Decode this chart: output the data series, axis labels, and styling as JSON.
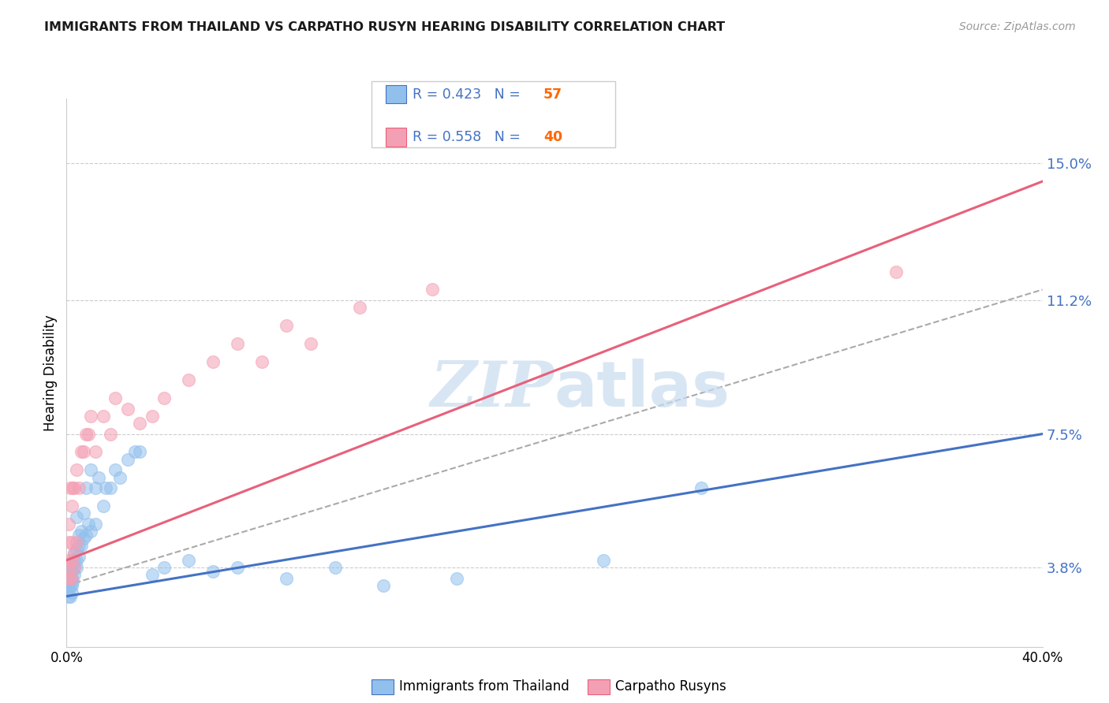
{
  "title": "IMMIGRANTS FROM THAILAND VS CARPATHO RUSYN HEARING DISABILITY CORRELATION CHART",
  "source": "Source: ZipAtlas.com",
  "ylabel": "Hearing Disability",
  "yticks": [
    "3.8%",
    "7.5%",
    "11.2%",
    "15.0%"
  ],
  "ytick_vals": [
    0.038,
    0.075,
    0.112,
    0.15
  ],
  "xlim": [
    0.0,
    0.4
  ],
  "ylim": [
    0.016,
    0.168
  ],
  "legend_color1": "#92C0ED",
  "legend_color2": "#F4A0B4",
  "line_color1": "#4472C4",
  "line_color2": "#E8607A",
  "dashed_color": "#AAAAAA",
  "legend_text_color": "#4472C4",
  "bottom_label1": "Immigrants from Thailand",
  "bottom_label2": "Carpatho Rusyns",
  "thailand_x": [
    0.0005,
    0.001,
    0.001,
    0.001,
    0.001,
    0.001,
    0.001,
    0.0015,
    0.0015,
    0.002,
    0.002,
    0.002,
    0.002,
    0.002,
    0.0025,
    0.003,
    0.003,
    0.003,
    0.003,
    0.004,
    0.004,
    0.004,
    0.004,
    0.005,
    0.005,
    0.005,
    0.006,
    0.006,
    0.007,
    0.007,
    0.008,
    0.008,
    0.009,
    0.01,
    0.01,
    0.012,
    0.012,
    0.013,
    0.015,
    0.016,
    0.018,
    0.02,
    0.022,
    0.025,
    0.028,
    0.03,
    0.035,
    0.04,
    0.05,
    0.06,
    0.07,
    0.09,
    0.11,
    0.13,
    0.16,
    0.22,
    0.26
  ],
  "thailand_y": [
    0.033,
    0.03,
    0.032,
    0.034,
    0.035,
    0.036,
    0.038,
    0.03,
    0.033,
    0.031,
    0.033,
    0.035,
    0.037,
    0.039,
    0.034,
    0.036,
    0.038,
    0.04,
    0.042,
    0.038,
    0.04,
    0.043,
    0.052,
    0.041,
    0.044,
    0.047,
    0.044,
    0.048,
    0.046,
    0.053,
    0.047,
    0.06,
    0.05,
    0.048,
    0.065,
    0.05,
    0.06,
    0.063,
    0.055,
    0.06,
    0.06,
    0.065,
    0.063,
    0.068,
    0.07,
    0.07,
    0.036,
    0.038,
    0.04,
    0.037,
    0.038,
    0.035,
    0.038,
    0.033,
    0.035,
    0.04,
    0.06
  ],
  "rusyn_x": [
    0.0005,
    0.001,
    0.001,
    0.001,
    0.001,
    0.001,
    0.0015,
    0.002,
    0.002,
    0.002,
    0.002,
    0.0025,
    0.003,
    0.003,
    0.003,
    0.004,
    0.004,
    0.005,
    0.006,
    0.007,
    0.008,
    0.009,
    0.01,
    0.012,
    0.015,
    0.018,
    0.02,
    0.025,
    0.03,
    0.035,
    0.04,
    0.05,
    0.06,
    0.07,
    0.08,
    0.09,
    0.1,
    0.12,
    0.15,
    0.34
  ],
  "rusyn_y": [
    0.035,
    0.035,
    0.038,
    0.04,
    0.045,
    0.05,
    0.06,
    0.035,
    0.04,
    0.045,
    0.055,
    0.06,
    0.038,
    0.042,
    0.06,
    0.045,
    0.065,
    0.06,
    0.07,
    0.07,
    0.075,
    0.075,
    0.08,
    0.07,
    0.08,
    0.075,
    0.085,
    0.082,
    0.078,
    0.08,
    0.085,
    0.09,
    0.095,
    0.1,
    0.095,
    0.105,
    0.1,
    0.11,
    0.115,
    0.12
  ],
  "thailand_line_x": [
    0.0,
    0.4
  ],
  "thailand_line_y": [
    0.03,
    0.075
  ],
  "rusyn_line_x": [
    0.0,
    0.4
  ],
  "rusyn_line_y": [
    0.04,
    0.145
  ],
  "dashed_line_x": [
    0.0,
    0.4
  ],
  "dashed_line_y": [
    0.033,
    0.115
  ]
}
